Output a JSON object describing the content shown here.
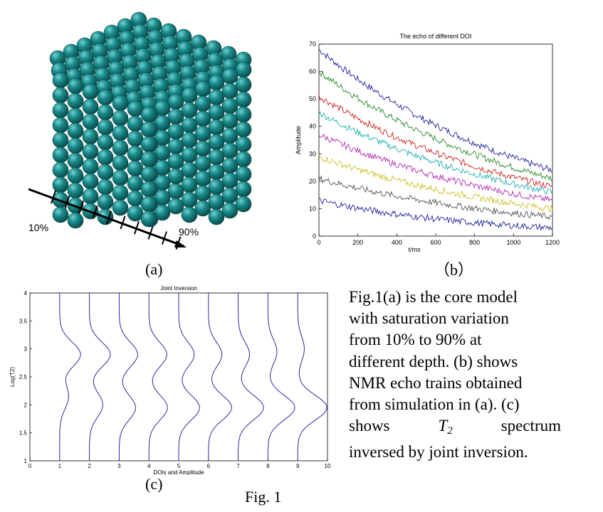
{
  "figure_label": "Fig. 1",
  "panel_a": {
    "label": "(a)",
    "scale_start": "10%",
    "scale_end": "90%"
  },
  "panel_b": {
    "label": "（b）"
  },
  "panel_c": {
    "label": "(c)"
  },
  "caption": {
    "line1": "Fig.1(a) is the core model",
    "line2": "with saturation variation",
    "line3": "from 10% to 90% at",
    "line4": "different depth. (b) shows",
    "line5": "NMR echo trains obtained",
    "line6": "from simulation in (a). (c)",
    "line7_pre": "shows",
    "line7_sym": "T",
    "line7_sub": "2",
    "line7_post": "spectrum",
    "line8": "inversed by joint inversion."
  },
  "colors": {
    "sphere": "#1a8a8a",
    "sphere_dark": "#0c5a5a",
    "series": [
      "#1f1f9f",
      "#2a8a2a",
      "#cc2222",
      "#22b0b0",
      "#b030b0",
      "#c8c020",
      "#555555",
      "#1f1f9f"
    ],
    "spectrum_line": "#2a2aa0"
  },
  "chart_data": [
    {
      "type": "line",
      "title": "The echo of different DOI",
      "xlabel": "t/ms",
      "ylabel": "Amplitude",
      "xlim": [
        0,
        1200
      ],
      "ylim": [
        0,
        70
      ],
      "xticks": [
        "0",
        "200",
        "400",
        "600",
        "800",
        "1000",
        "1200"
      ],
      "yticks": [
        "0",
        "10",
        "20",
        "30",
        "40",
        "50",
        "60",
        "70"
      ],
      "x": [
        0,
        200,
        400,
        600,
        800,
        1000,
        1200
      ],
      "series": [
        {
          "values": [
            68,
            56,
            46,
            39,
            33,
            28,
            24
          ]
        },
        {
          "values": [
            60,
            49,
            40,
            34,
            29,
            25,
            21
          ]
        },
        {
          "values": [
            51,
            42,
            35,
            29,
            25,
            21,
            18
          ]
        },
        {
          "values": [
            45,
            37,
            30,
            25,
            21,
            18,
            16
          ]
        },
        {
          "values": [
            37,
            30,
            25,
            21,
            18,
            15,
            13
          ]
        },
        {
          "values": [
            29,
            24,
            20,
            17,
            14,
            12,
            10
          ]
        },
        {
          "values": [
            21,
            17,
            14,
            12,
            10,
            8,
            7
          ]
        },
        {
          "values": [
            13,
            10,
            8,
            6,
            5,
            4,
            3
          ]
        }
      ],
      "grid": false
    },
    {
      "type": "line",
      "title": "Joint Inversion",
      "xlabel": "DOIs and Amplitude",
      "ylabel": "Log(T2)",
      "xlim": [
        0,
        10
      ],
      "ylim": [
        1,
        4
      ],
      "xticks": [
        "0",
        "1",
        "2",
        "3",
        "4",
        "5",
        "6",
        "7",
        "8",
        "9",
        "10"
      ],
      "yticks": [
        "1",
        "1.5",
        "2",
        "2.5",
        "3",
        "3.5",
        "4"
      ],
      "series": [
        {
          "base": 1,
          "peaks": [
            {
              "t2": 2.9,
              "amp": 0.7
            },
            {
              "t2": 2.15,
              "amp": 0.3
            }
          ]
        },
        {
          "base": 2,
          "peaks": [
            {
              "t2": 2.9,
              "amp": 0.7
            },
            {
              "t2": 2.0,
              "amp": 0.45
            }
          ]
        },
        {
          "base": 3,
          "peaks": [
            {
              "t2": 2.9,
              "amp": 0.62
            },
            {
              "t2": 1.95,
              "amp": 0.55
            }
          ]
        },
        {
          "base": 4,
          "peaks": [
            {
              "t2": 2.9,
              "amp": 0.6
            },
            {
              "t2": 1.95,
              "amp": 0.62
            }
          ]
        },
        {
          "base": 5,
          "peaks": [
            {
              "t2": 2.9,
              "amp": 0.52
            },
            {
              "t2": 1.95,
              "amp": 0.7
            }
          ]
        },
        {
          "base": 6,
          "peaks": [
            {
              "t2": 2.9,
              "amp": 0.45
            },
            {
              "t2": 1.95,
              "amp": 0.78
            }
          ]
        },
        {
          "base": 7,
          "peaks": [
            {
              "t2": 2.9,
              "amp": 0.38
            },
            {
              "t2": 1.95,
              "amp": 0.85
            }
          ]
        },
        {
          "base": 8,
          "peaks": [
            {
              "t2": 2.95,
              "amp": 0.3
            },
            {
              "t2": 1.95,
              "amp": 0.9
            }
          ]
        },
        {
          "base": 9,
          "peaks": [
            {
              "t2": 3.0,
              "amp": 0.22
            },
            {
              "t2": 1.95,
              "amp": 0.98
            }
          ]
        }
      ]
    }
  ]
}
